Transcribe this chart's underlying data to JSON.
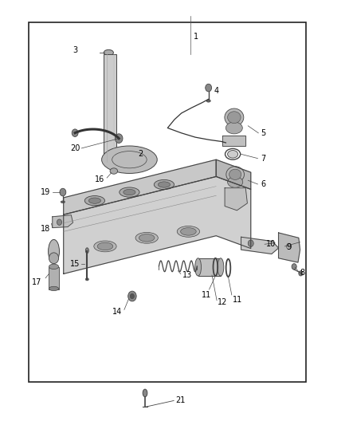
{
  "bg_color": "#ffffff",
  "border_color": "#222222",
  "drawing_color": "#444444",
  "diagram_bounds": [
    0.08,
    0.1,
    0.88,
    0.95
  ],
  "label_offsets": {
    "1": [
      0.555,
      0.915,
      "left"
    ],
    "2": [
      0.395,
      0.632,
      "left"
    ],
    "3": [
      0.22,
      0.883,
      "right"
    ],
    "4": [
      0.628,
      0.785,
      "left"
    ],
    "5": [
      0.75,
      0.682,
      "left"
    ],
    "6": [
      0.748,
      0.563,
      "left"
    ],
    "7": [
      0.748,
      0.625,
      "left"
    ],
    "8": [
      0.862,
      0.355,
      "left"
    ],
    "9": [
      0.822,
      0.415,
      "left"
    ],
    "10": [
      0.768,
      0.422,
      "left"
    ],
    "11a": [
      0.595,
      0.305,
      "center"
    ],
    "11b": [
      0.66,
      0.285,
      "left"
    ],
    "12": [
      0.628,
      0.285,
      "left"
    ],
    "13": [
      0.515,
      0.352,
      "left"
    ],
    "14": [
      0.342,
      0.258,
      "right"
    ],
    "15": [
      0.226,
      0.378,
      "right"
    ],
    "16": [
      0.298,
      0.575,
      "right"
    ],
    "17": [
      0.118,
      0.328,
      "right"
    ],
    "18": [
      0.142,
      0.458,
      "right"
    ],
    "19": [
      0.138,
      0.545,
      "right"
    ],
    "20": [
      0.228,
      0.648,
      "right"
    ],
    "21": [
      0.505,
      0.055,
      "left"
    ]
  }
}
